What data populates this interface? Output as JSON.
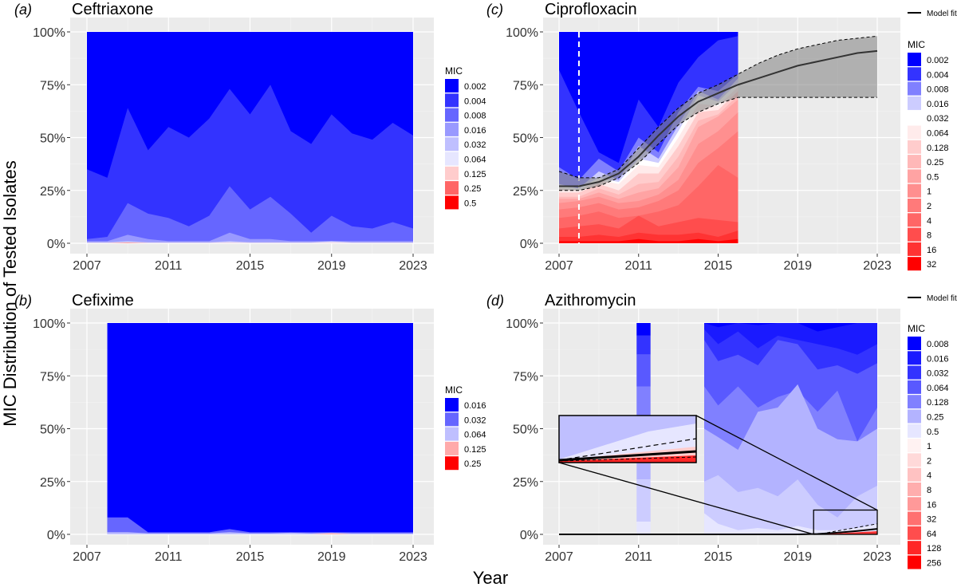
{
  "figure": {
    "ylabel": "MIC Distribution of Tested Isolates",
    "xlabel": "Year"
  },
  "chart_data": [
    {
      "type": "area",
      "panel": "(a)",
      "title": "Ceftriaxone",
      "x": [
        2007,
        2008,
        2009,
        2010,
        2011,
        2012,
        2013,
        2014,
        2015,
        2016,
        2017,
        2018,
        2019,
        2020,
        2021,
        2022,
        2023
      ],
      "xticks": [
        2007,
        2011,
        2015,
        2019,
        2023
      ],
      "yticks": [
        "0%",
        "25%",
        "50%",
        "75%",
        "100%"
      ],
      "xlim": [
        2006.5,
        2023.8
      ],
      "ylim": [
        0,
        100
      ],
      "legend_title": "MIC",
      "series": [
        {
          "name": "0.002",
          "color": "#0000FF",
          "values": [
            100,
            100,
            100,
            100,
            100,
            100,
            100,
            100,
            100,
            100,
            100,
            100,
            100,
            100,
            100,
            100,
            100
          ]
        },
        {
          "name": "0.004",
          "color": "#3333FF",
          "values": [
            35,
            31,
            64,
            44,
            55,
            50,
            59,
            73,
            61,
            75,
            53,
            47,
            61,
            52,
            49,
            57,
            51
          ]
        },
        {
          "name": "0.008",
          "color": "#6666FF",
          "values": [
            2,
            3,
            19,
            14,
            12,
            8,
            13,
            27,
            16,
            22,
            14,
            5,
            13,
            8,
            7,
            10,
            7
          ]
        },
        {
          "name": "0.016",
          "color": "#9999FF",
          "values": [
            1,
            1,
            4,
            2,
            1,
            1,
            1,
            5,
            2,
            2,
            1,
            1,
            1,
            1,
            1,
            1,
            1
          ]
        },
        {
          "name": "0.032",
          "color": "#BFBFFF",
          "values": [
            0.5,
            0.5,
            1,
            0.5,
            0.5,
            0.5,
            0.5,
            1,
            0.5,
            0.5,
            0.5,
            0.5,
            1,
            0.5,
            0.5,
            0.5,
            0.5
          ]
        },
        {
          "name": "0.064",
          "color": "#E6E6FF",
          "values": [
            0.3,
            0.3,
            0.6,
            0.3,
            0.3,
            0.3,
            0.3,
            0.6,
            0.3,
            0.3,
            0.3,
            0.3,
            0.8,
            0.3,
            0.3,
            0.3,
            0.3
          ]
        },
        {
          "name": "0.125",
          "color": "#FFCCCC",
          "values": [
            0.1,
            0.1,
            0.4,
            0.1,
            0.1,
            0.1,
            0.1,
            0.2,
            0.1,
            0.1,
            0.1,
            0.1,
            0.2,
            0.1,
            0.1,
            0.1,
            0.1
          ]
        },
        {
          "name": "0.25",
          "color": "#FF6666",
          "values": [
            0,
            0,
            0.2,
            0,
            0,
            0,
            0,
            0,
            0,
            0,
            0,
            0,
            0,
            0,
            0,
            0,
            0
          ]
        },
        {
          "name": "0.5",
          "color": "#FF0000",
          "values": [
            0,
            0,
            0,
            0,
            0,
            0,
            0,
            0,
            0,
            0,
            0,
            0,
            0,
            0,
            0,
            0,
            0
          ]
        }
      ]
    },
    {
      "type": "area",
      "panel": "(b)",
      "title": "Cefixime",
      "x": [
        2008,
        2009,
        2010,
        2011,
        2012,
        2013,
        2014,
        2015,
        2016,
        2017,
        2018,
        2019,
        2020,
        2021,
        2022,
        2023
      ],
      "xticks": [
        2007,
        2011,
        2015,
        2019,
        2023
      ],
      "yticks": [
        "0%",
        "25%",
        "50%",
        "75%",
        "100%"
      ],
      "xlim": [
        2006.5,
        2023.8
      ],
      "ylim": [
        0,
        100
      ],
      "legend_title": "MIC",
      "series": [
        {
          "name": "0.016",
          "color": "#0000FF",
          "values": [
            100,
            100,
            100,
            100,
            100,
            100,
            100,
            100,
            100,
            100,
            100,
            100,
            100,
            100,
            100,
            100
          ]
        },
        {
          "name": "0.032",
          "color": "#6666FF",
          "values": [
            8,
            8,
            1,
            1,
            1,
            1,
            2.5,
            1,
            1,
            1,
            1,
            1,
            1,
            1,
            1,
            1
          ]
        },
        {
          "name": "0.064",
          "color": "#BFBFFF",
          "values": [
            1,
            1,
            0.5,
            0.5,
            0.5,
            0.5,
            1,
            0.5,
            0.5,
            0.8,
            0.5,
            0.8,
            0.5,
            0.5,
            0.5,
            0.5
          ]
        },
        {
          "name": "0.125",
          "color": "#FFAAAA",
          "values": [
            0,
            0,
            0,
            0,
            0,
            0,
            0,
            0,
            0,
            0,
            0,
            0.5,
            0,
            0,
            0,
            0
          ]
        },
        {
          "name": "0.25",
          "color": "#FF0000",
          "values": [
            0,
            0,
            0,
            0,
            0,
            0,
            0,
            0,
            0,
            0,
            0,
            0,
            0,
            0,
            0,
            0
          ]
        }
      ]
    },
    {
      "type": "area",
      "panel": "(c)",
      "title": "Ciprofloxacin",
      "x": [
        2007,
        2008,
        2009,
        2010,
        2011,
        2012,
        2013,
        2014,
        2015,
        2016
      ],
      "xticks": [
        2007,
        2011,
        2015,
        2019,
        2023
      ],
      "yticks": [
        "0%",
        "25%",
        "50%",
        "75%",
        "100%"
      ],
      "xlim": [
        2006.5,
        2023.8
      ],
      "ylim": [
        0,
        100
      ],
      "legend_title": "MIC",
      "model_fit_label": "Model fit",
      "vline_x": 2008,
      "series": [
        {
          "name": "0.002",
          "color": "#0000FF",
          "values": [
            100,
            100,
            100,
            100,
            100,
            100,
            100,
            100,
            100,
            100
          ]
        },
        {
          "name": "0.004",
          "color": "#3333FF",
          "values": [
            82,
            62,
            43,
            38,
            68,
            55,
            76,
            88,
            96,
            98
          ]
        },
        {
          "name": "0.008",
          "color": "#8080FF",
          "values": [
            36,
            30,
            40,
            34,
            50,
            43,
            62,
            74,
            72,
            80
          ]
        },
        {
          "name": "0.016",
          "color": "#CCCCFF",
          "values": [
            28,
            26,
            34,
            30,
            46,
            40,
            56,
            72,
            68,
            78
          ]
        },
        {
          "name": "0.032",
          "color": "#FFFFFF",
          "values": [
            27,
            26,
            31,
            29,
            40,
            38,
            53,
            70,
            67,
            76
          ]
        },
        {
          "name": "0.064",
          "color": "#FFEBEB",
          "values": [
            26,
            25,
            30,
            28,
            37,
            36,
            50,
            66,
            65,
            74
          ]
        },
        {
          "name": "0.128",
          "color": "#FFCCCC",
          "values": [
            24,
            24,
            28,
            25,
            33,
            33,
            46,
            62,
            63,
            72
          ]
        },
        {
          "name": "0.25",
          "color": "#FFB8B8",
          "values": [
            22,
            22,
            26,
            23,
            28,
            29,
            41,
            58,
            61,
            70
          ]
        },
        {
          "name": "0.5",
          "color": "#FFA3A3",
          "values": [
            21,
            21,
            24,
            21,
            24,
            26,
            36,
            55,
            60,
            68
          ]
        },
        {
          "name": "1",
          "color": "#FF8F8F",
          "values": [
            19,
            20,
            22,
            19,
            20,
            23,
            30,
            47,
            53,
            62
          ]
        },
        {
          "name": "2",
          "color": "#FF7A7A",
          "values": [
            16,
            17,
            19,
            16,
            17,
            20,
            25,
            38,
            45,
            53
          ]
        },
        {
          "name": "4",
          "color": "#FF6666",
          "values": [
            12,
            13,
            15,
            12,
            13,
            15,
            18,
            27,
            37,
            31
          ]
        },
        {
          "name": "8",
          "color": "#FF4D4D",
          "values": [
            7,
            8,
            9,
            7,
            13,
            8,
            10,
            12,
            11,
            10
          ]
        },
        {
          "name": "16",
          "color": "#FF3333",
          "values": [
            3,
            3,
            4,
            3,
            5,
            4,
            4,
            5,
            3,
            6
          ]
        },
        {
          "name": "32",
          "color": "#FF0000",
          "values": [
            1,
            1,
            1,
            1,
            2,
            1,
            1,
            2,
            1,
            2
          ]
        }
      ],
      "model_fit": {
        "x": [
          2007,
          2008,
          2009,
          2010,
          2011,
          2012,
          2013,
          2014,
          2015,
          2016,
          2017,
          2018,
          2019,
          2020,
          2021,
          2022,
          2023
        ],
        "mid": [
          27,
          27,
          29,
          33,
          41,
          51,
          60,
          67,
          71,
          75,
          78,
          81,
          84,
          86,
          88,
          90,
          91
        ],
        "lower": [
          25,
          25,
          27,
          31,
          38,
          47,
          56,
          62,
          66,
          69,
          69,
          69,
          69,
          69,
          69,
          69,
          69
        ],
        "upper": [
          34,
          31,
          31,
          35,
          45,
          55,
          64,
          71,
          75,
          80,
          85,
          89,
          92,
          94,
          96,
          97,
          98
        ]
      }
    },
    {
      "type": "area",
      "panel": "(d)",
      "title": "Azithromycin",
      "x": [
        2014.3,
        2015,
        2016,
        2017,
        2018,
        2019,
        2020,
        2021,
        2022,
        2023
      ],
      "x_bar_2011": [
        2010.9,
        2011.6
      ],
      "xticks": [
        2007,
        2011,
        2015,
        2019,
        2023
      ],
      "yticks": [
        "0%",
        "25%",
        "50%",
        "75%",
        "100%"
      ],
      "xlim": [
        2006.5,
        2023.8
      ],
      "ylim": [
        0,
        100
      ],
      "legend_title": "MIC",
      "model_fit_label": "Model fit",
      "legend": [
        "0.008",
        "0.016",
        "0.032",
        "0.064",
        "0.128",
        "0.25",
        "0.5",
        "1",
        "2",
        "4",
        "8",
        "16",
        "32",
        "64",
        "128",
        "256"
      ],
      "legend_colors": [
        "#0000FF",
        "#1A1AFF",
        "#3333FF",
        "#5959FF",
        "#8080FF",
        "#B3B3FF",
        "#E6E6FF",
        "#FFF2F2",
        "#FFD9D9",
        "#FFC2C2",
        "#FFADAD",
        "#FF9999",
        "#FF7070",
        "#FF4D4D",
        "#FF2626",
        "#FF0000"
      ],
      "bands": [
        {
          "color": "#1A1AFF",
          "values": [
            100,
            98,
            100,
            99,
            100,
            100,
            96,
            98,
            100,
            100
          ]
        },
        {
          "color": "#3333FF",
          "values": [
            97,
            90,
            96,
            88,
            94,
            92,
            90,
            88,
            85,
            90
          ]
        },
        {
          "color": "#5959FF",
          "values": [
            92,
            82,
            85,
            80,
            92,
            90,
            78,
            80,
            76,
            81
          ]
        },
        {
          "color": "#8080FF",
          "values": [
            70,
            61,
            70,
            60,
            65,
            68,
            58,
            68,
            44,
            60
          ]
        },
        {
          "color": "#B3B3FF",
          "values": [
            50,
            46,
            40,
            58,
            60,
            71,
            50,
            45,
            44,
            50
          ]
        },
        {
          "color": "#CCCCFF",
          "values": [
            25,
            28,
            20,
            22,
            18,
            26,
            14,
            8,
            18,
            23
          ]
        },
        {
          "color": "#E6E6FF",
          "values": [
            10,
            5,
            2,
            3,
            2,
            4,
            2,
            2,
            3,
            5
          ]
        }
      ],
      "bar_2011": [
        {
          "color": "#0000FF",
          "bottom": 94,
          "top": 100
        },
        {
          "color": "#3333FF",
          "bottom": 85,
          "top": 94
        },
        {
          "color": "#5959FF",
          "bottom": 70,
          "top": 85
        },
        {
          "color": "#8080FF",
          "bottom": 50,
          "top": 70
        },
        {
          "color": "#B3B3FF",
          "bottom": 26,
          "top": 50
        },
        {
          "color": "#CCCCFF",
          "bottom": 6,
          "top": 26
        },
        {
          "color": "#E6E6FF",
          "bottom": 0,
          "top": 6
        }
      ],
      "model_fit": {
        "x": [
          2007,
          2008,
          2009,
          2010,
          2011,
          2012,
          2013,
          2014,
          2015,
          2016,
          2017,
          2018,
          2019,
          2020,
          2021,
          2022,
          2023
        ],
        "mid": [
          0,
          0,
          0,
          0,
          0,
          0,
          0,
          0,
          0,
          0,
          0,
          0,
          0,
          0.2,
          0.8,
          1.6,
          2.6
        ]
      }
    }
  ]
}
